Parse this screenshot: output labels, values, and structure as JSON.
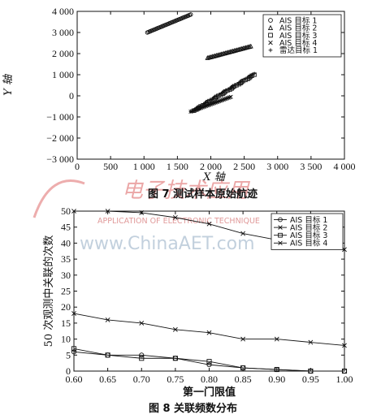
{
  "watermark": {
    "journal_cn": "电子技术应用",
    "journal_en": "APPLICATION OF ELECTRONIC TECHNIQUE",
    "url": "www.ChinaAET.com"
  },
  "chart_data": [
    {
      "type": "scatter",
      "caption": "图 7   测试样本原始航迹",
      "xlabel": "X 轴",
      "ylabel": "Y 轴",
      "xlim": [
        0,
        4000
      ],
      "ylim": [
        -3000,
        4000
      ],
      "xticks": [
        "0",
        "500",
        "1 000",
        "1 500",
        "2 000",
        "2 500",
        "3 000",
        "3 500",
        "4 000"
      ],
      "yticks": [
        "4 000",
        "3 000",
        "2 000",
        "1 000",
        "0",
        "−1 000",
        "−2 000",
        "−3 000"
      ],
      "legend_position": "top-right",
      "series": [
        {
          "name": "AIS 目标 1",
          "marker": "circle",
          "from": [
            1050,
            3000
          ],
          "to": [
            1700,
            3850
          ]
        },
        {
          "name": "AIS 目标 2",
          "marker": "triangle",
          "from": [
            1950,
            1800
          ],
          "to": [
            2600,
            2350
          ]
        },
        {
          "name": "AIS 目标 3",
          "marker": "square",
          "from": [
            1750,
            -700
          ],
          "to": [
            2650,
            1000
          ]
        },
        {
          "name": "AIS 目标 4",
          "marker": "x",
          "from": [
            1700,
            -750
          ],
          "to": [
            2300,
            -50
          ]
        },
        {
          "name": "雷达目标 1",
          "marker": "plus",
          "from": [
            1700,
            -750
          ],
          "to": [
            2650,
            1050
          ]
        }
      ]
    },
    {
      "type": "line",
      "caption": "图 8   关联频数分布",
      "xlabel": "第一门限值",
      "ylabel": "50 次观测中关联的次数",
      "xlim": [
        0.6,
        1.0
      ],
      "ylim": [
        0,
        50
      ],
      "xticks": [
        "0.60",
        "0.65",
        "0.70",
        "0.75",
        "0.80",
        "0.85",
        "0.90",
        "0.95",
        "1.00"
      ],
      "yticks": [
        "50",
        "45",
        "40",
        "35",
        "30",
        "25",
        "20",
        "15",
        "10",
        "5",
        "0"
      ],
      "legend_position": "top-right",
      "x": [
        0.6,
        0.65,
        0.7,
        0.75,
        0.8,
        0.85,
        0.9,
        0.95,
        1.0
      ],
      "series": [
        {
          "name": "AIS 目标 1",
          "marker": "circle",
          "values": [
            6,
            5,
            5,
            4,
            2,
            1,
            0.5,
            0,
            0
          ]
        },
        {
          "name": "AIS 目标 2",
          "marker": "x",
          "values": [
            50,
            50,
            49.5,
            48,
            46,
            43,
            41,
            39,
            38
          ]
        },
        {
          "name": "AIS 目标 3",
          "marker": "square",
          "values": [
            7,
            5,
            4,
            4,
            3,
            1,
            0.5,
            0,
            0
          ]
        },
        {
          "name": "AIS 目标 4",
          "marker": "x",
          "values": [
            18,
            16,
            15,
            13,
            12,
            10,
            10,
            9,
            8
          ]
        }
      ]
    }
  ]
}
